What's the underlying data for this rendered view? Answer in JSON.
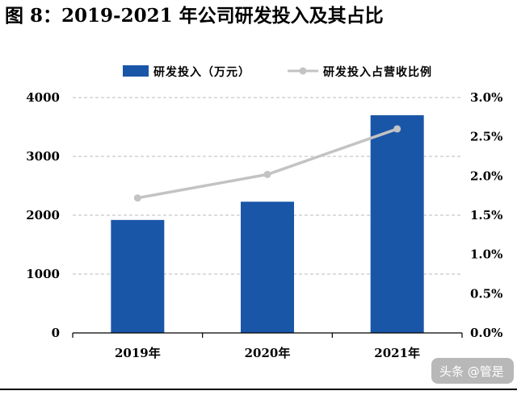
{
  "title": "图 8：2019-2021 年公司研发投入及其占比",
  "watermark": "头条 @管是",
  "colors": {
    "bar": "#1a56a8",
    "line": "#c3c3c3",
    "axis": "#000000",
    "grid": "#bbbbbb"
  },
  "chart_data": {
    "type": "bar",
    "categories": [
      "2019年",
      "2020年",
      "2021年"
    ],
    "series": [
      {
        "name": "研发投入（万元）",
        "type": "bar",
        "axis": "left",
        "values": [
          1920,
          2230,
          3700
        ]
      },
      {
        "name": "研发投入占营收比例",
        "type": "line",
        "axis": "right",
        "values": [
          1.72,
          2.02,
          2.6
        ]
      }
    ],
    "ylim": [
      0,
      4000
    ],
    "yticks": [
      "0",
      "1000",
      "2000",
      "3000",
      "4000"
    ],
    "y2lim": [
      0,
      3.0
    ],
    "y2ticks": [
      "0.0%",
      "0.5%",
      "1.0%",
      "1.5%",
      "2.0%",
      "2.5%",
      "3.0%"
    ],
    "grid": true,
    "legend_position": "top"
  }
}
